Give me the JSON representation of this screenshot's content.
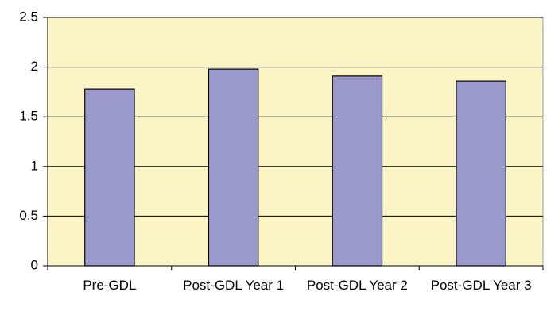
{
  "chart_data": {
    "type": "bar",
    "categories": [
      "Pre-GDL",
      "Post-GDL Year 1",
      "Post-GDL Year 2",
      "Post-GDL Year 3"
    ],
    "values": [
      1.78,
      1.98,
      1.91,
      1.86
    ],
    "color": "#9999cc",
    "plot_background": "#fbf5c6",
    "ylim": [
      0,
      2.5
    ],
    "yticks": [
      0,
      0.5,
      1,
      1.5,
      2,
      2.5
    ],
    "grid": true
  }
}
